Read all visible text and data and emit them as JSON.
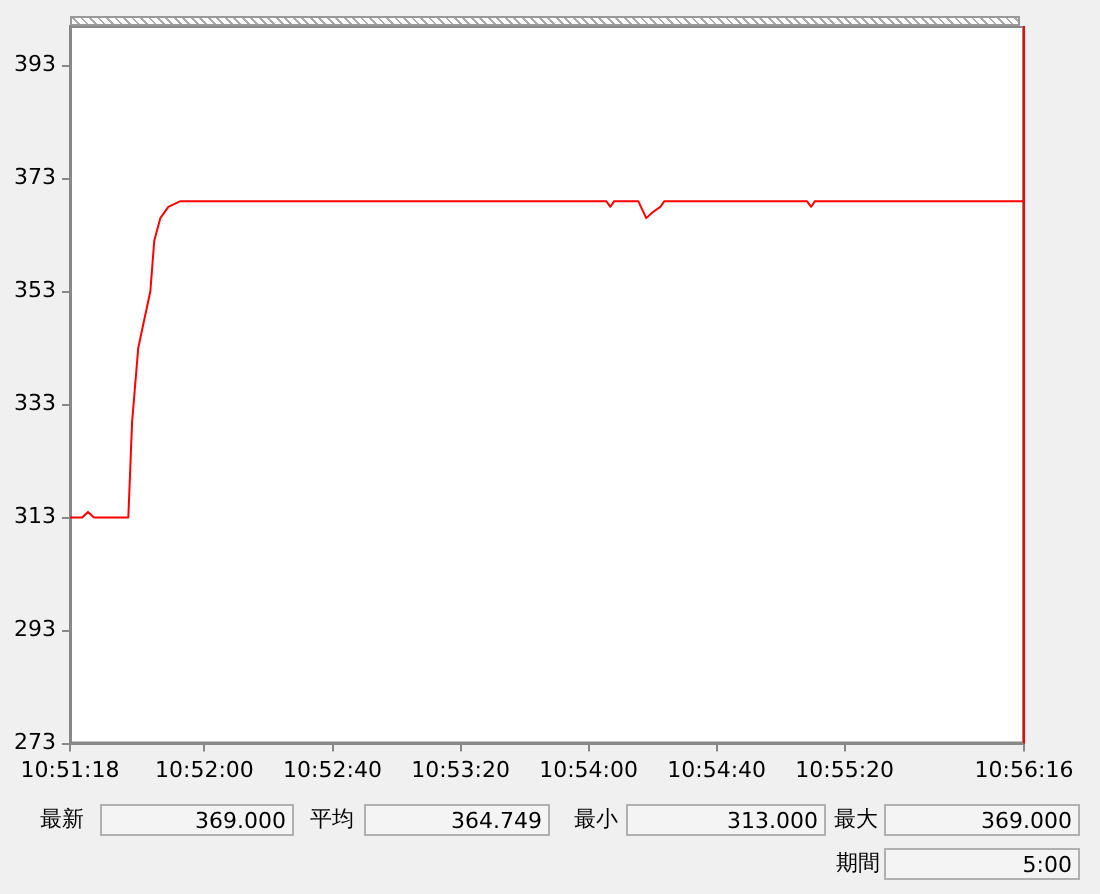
{
  "chart_data": {
    "type": "line",
    "x": [
      10.855,
      10.85606,
      10.85656,
      10.85708,
      10.86006,
      10.86039,
      10.86092,
      10.86144,
      10.86197,
      10.86231,
      10.86284,
      10.86353,
      10.86458,
      10.90153,
      10.90189,
      10.90222,
      10.90431,
      10.905,
      10.90553,
      10.90622,
      10.90658,
      10.91894,
      10.91931,
      10.91964,
      10.93778
    ],
    "series": [
      {
        "color": "#ff0000",
        "values": [
          313,
          313,
          314,
          313,
          313,
          330,
          343,
          348,
          353,
          362,
          366,
          368,
          369,
          369,
          368,
          369,
          369,
          366,
          367,
          368,
          369,
          369,
          368,
          369,
          369
        ]
      }
    ],
    "xlim": [
      10.855,
      10.93778
    ],
    "ylim": [
      273,
      400
    ],
    "xticks": [
      {
        "value": 10.855,
        "label": "10:51:18"
      },
      {
        "value": 10.866667,
        "label": "10:52:00"
      },
      {
        "value": 10.877778,
        "label": "10:52:40"
      },
      {
        "value": 10.888889,
        "label": "10:53:20"
      },
      {
        "value": 10.9,
        "label": "10:54:00"
      },
      {
        "value": 10.911111,
        "label": "10:54:40"
      },
      {
        "value": 10.922222,
        "label": "10:55:20"
      },
      {
        "value": 10.937778,
        "label": "10:56:16"
      }
    ],
    "yticks": [
      273,
      293,
      313,
      333,
      353,
      373,
      393
    ],
    "ref_lines": [
      {
        "axis": "x",
        "value": 10.93778,
        "label": null,
        "color": "#ff0000"
      }
    ],
    "grid": false,
    "legend": false,
    "marker": "none",
    "line_style": "solid",
    "annotations": [
      "最新",
      "369.000",
      "平均",
      "364.749",
      "最小",
      "313.000",
      "最大",
      "369.000",
      "期間",
      "5:00"
    ]
  }
}
